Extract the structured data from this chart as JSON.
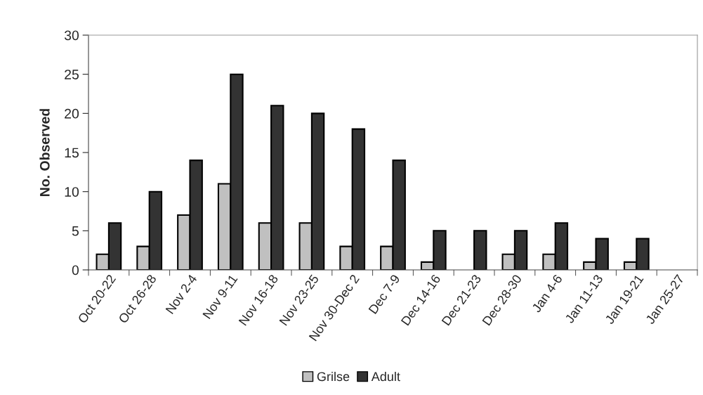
{
  "chart_data": {
    "type": "bar",
    "ylabel": "No. Observed",
    "categories": [
      "Oct 20-22",
      "Oct 26-28",
      "Nov 2-4",
      "Nov 9-11",
      "Nov 16-18",
      "Nov 23-25",
      "Nov 30-Dec 2",
      "Dec 7-9",
      "Dec 14-16",
      "Dec 21-23",
      "Dec 28-30",
      "Jan 4-6",
      "Jan 11-13",
      "Jan 19-21",
      "Jan 25-27"
    ],
    "series": [
      {
        "name": "Grilse",
        "color": "#c0c0c0",
        "values": [
          2,
          3,
          7,
          11,
          6,
          6,
          3,
          3,
          1,
          null,
          2,
          2,
          1,
          1,
          null
        ]
      },
      {
        "name": "Adult",
        "color": "#333333",
        "values": [
          6,
          10,
          14,
          25,
          21,
          20,
          18,
          14,
          5,
          5,
          5,
          6,
          4,
          4,
          null
        ]
      }
    ],
    "ylim": [
      0,
      30
    ],
    "yticks": [
      0,
      5,
      10,
      15,
      20,
      25,
      30
    ],
    "grid": false,
    "legend": "bottom"
  }
}
